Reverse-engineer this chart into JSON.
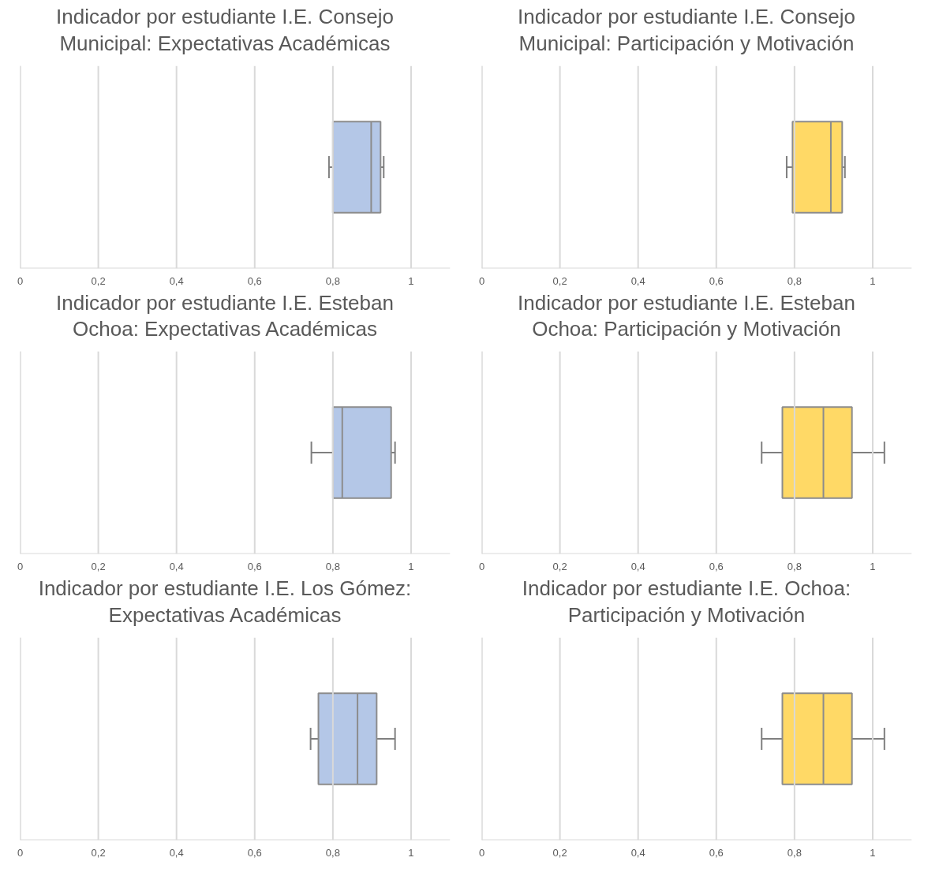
{
  "chart_data": [
    {
      "type": "box",
      "orientation": "horizontal",
      "title": "Indicador por estudiante I.E. Consejo Municipal: Expectativas Académicas",
      "categories": [
        null
      ],
      "color": "#b4c7e7",
      "boxes": [
        {
          "low": 0.79,
          "q1": 0.8,
          "median": 0.898,
          "q3": 0.922,
          "high": 0.93
        }
      ],
      "xlim": [
        0,
        1.1
      ],
      "xticks": [
        0,
        {
          "value": 0.2,
          "label": "0,2"
        },
        {
          "value": 0.4,
          "label": "0,4"
        },
        {
          "value": 0.6,
          "label": "0,6"
        },
        {
          "value": 0.8,
          "label": "0,8"
        },
        1
      ],
      "grid": "x"
    },
    {
      "type": "box",
      "orientation": "horizontal",
      "title": "Indicador por estudiante I.E. Consejo Municipal: Participación y Motivación",
      "categories": [
        null
      ],
      "color": "#ffd966",
      "boxes": [
        {
          "low": 0.78,
          "q1": 0.795,
          "median": 0.893,
          "q3": 0.922,
          "high": 0.929
        }
      ],
      "xlim": [
        0,
        1.1
      ],
      "xticks": [
        0,
        {
          "value": 0.2,
          "label": "0,2"
        },
        {
          "value": 0.4,
          "label": "0,4"
        },
        {
          "value": 0.6,
          "label": "0,6"
        },
        {
          "value": 0.8,
          "label": "0,8"
        },
        1
      ],
      "grid": "x"
    },
    {
      "type": "box",
      "orientation": "horizontal",
      "title": "Indicador por estudiante I.E. Esteban Ochoa: Expectativas Académicas",
      "categories": [
        null
      ],
      "color": "#b4c7e7",
      "boxes": [
        {
          "low": 0.745,
          "q1": 0.8,
          "median": 0.824,
          "q3": 0.949,
          "high": 0.959
        }
      ],
      "xlim": [
        0,
        1.1
      ],
      "xticks": [
        0,
        {
          "value": 0.2,
          "label": "0,2"
        },
        {
          "value": 0.4,
          "label": "0,4"
        },
        {
          "value": 0.6,
          "label": "0,6"
        },
        {
          "value": 0.8,
          "label": "0,8"
        },
        1
      ],
      "grid": "x"
    },
    {
      "type": "box",
      "orientation": "horizontal",
      "title": "Indicador por estudiante I.E. Esteban Ochoa: Participación y Motivación",
      "categories": [
        null
      ],
      "color": "#ffd966",
      "boxes": [
        {
          "low": 0.716,
          "q1": 0.769,
          "median": 0.874,
          "q3": 0.947,
          "high": 1.03
        }
      ],
      "xlim": [
        0,
        1.1
      ],
      "xticks": [
        0,
        {
          "value": 0.2,
          "label": "0,2"
        },
        {
          "value": 0.4,
          "label": "0,4"
        },
        {
          "value": 0.6,
          "label": "0,6"
        },
        {
          "value": 0.8,
          "label": "0,8"
        },
        1
      ],
      "grid": "x"
    },
    {
      "type": "box",
      "orientation": "horizontal",
      "title": "Indicador por estudiante I.E. Los Gómez: Expectativas Académicas",
      "categories": [
        null
      ],
      "color": "#b4c7e7",
      "boxes": [
        {
          "low": 0.743,
          "q1": 0.763,
          "median": 0.863,
          "q3": 0.912,
          "high": 0.959
        }
      ],
      "xlim": [
        0,
        1.1
      ],
      "xticks": [
        0,
        {
          "value": 0.2,
          "label": "0,2"
        },
        {
          "value": 0.4,
          "label": "0,4"
        },
        {
          "value": 0.6,
          "label": "0,6"
        },
        {
          "value": 0.8,
          "label": "0,8"
        },
        1
      ],
      "grid": "x"
    },
    {
      "type": "box",
      "orientation": "horizontal",
      "title": "Indicador por estudiante I.E. Ochoa: Participación y Motivación",
      "categories": [
        null
      ],
      "color": "#ffd966",
      "boxes": [
        {
          "low": 0.716,
          "q1": 0.769,
          "median": 0.874,
          "q3": 0.947,
          "high": 1.03
        }
      ],
      "xlim": [
        0,
        1.1
      ],
      "xticks": [
        0,
        {
          "value": 0.2,
          "label": "0,2"
        },
        {
          "value": 0.4,
          "label": "0,4"
        },
        {
          "value": 0.6,
          "label": "0,6"
        },
        {
          "value": 0.8,
          "label": "0,8"
        },
        1
      ],
      "grid": "x"
    }
  ]
}
